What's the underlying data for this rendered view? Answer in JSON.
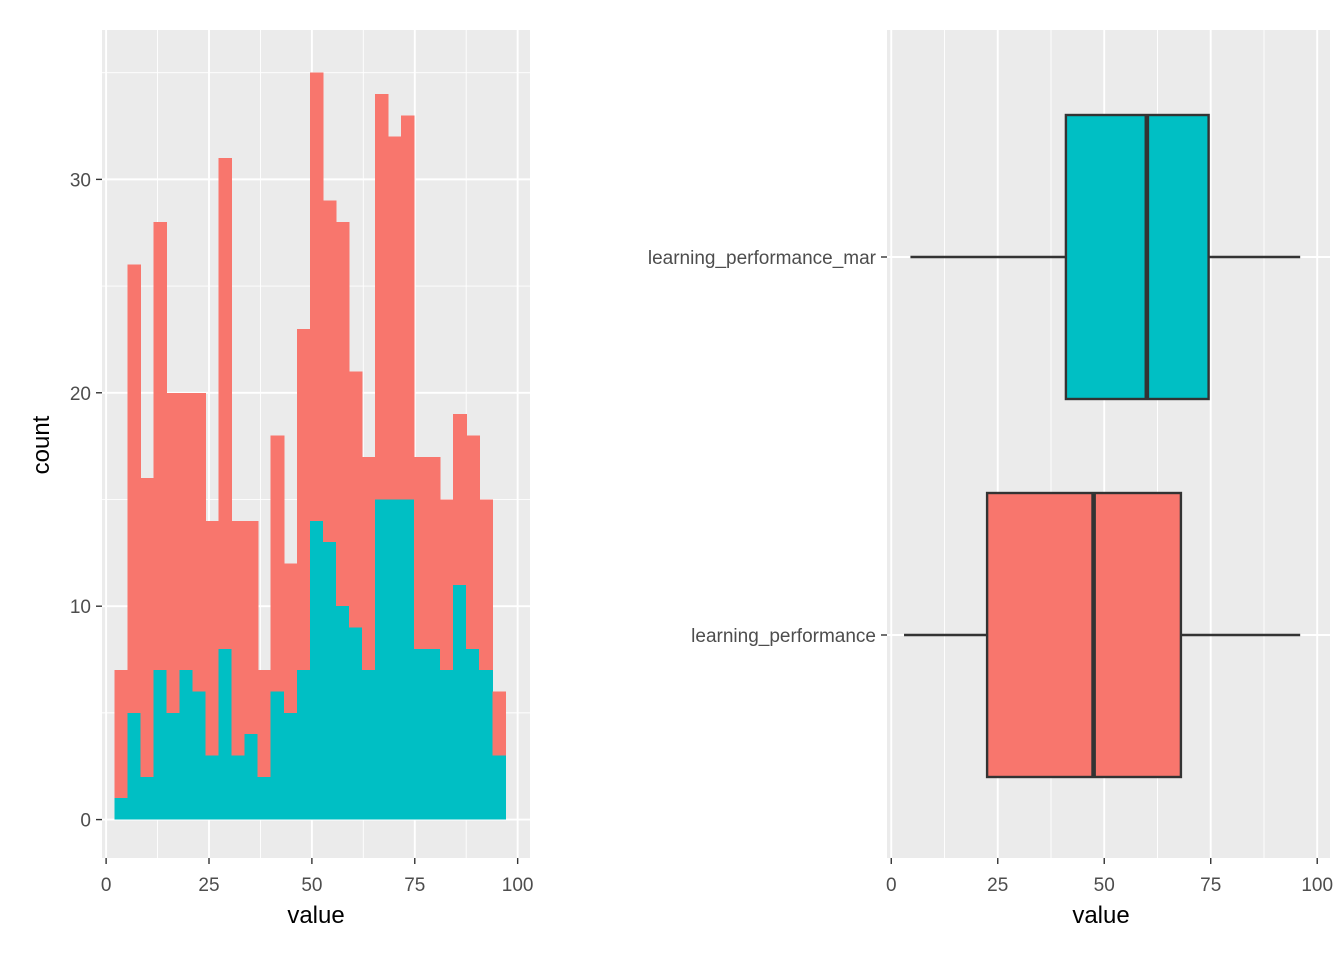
{
  "chart_data": [
    {
      "type": "bar",
      "subtype": "stacked-histogram",
      "xlabel": "value",
      "ylabel": "count",
      "xlim": [
        -1,
        103
      ],
      "ylim": [
        -1.8,
        37
      ],
      "x_ticks": [
        0,
        25,
        50,
        75,
        100
      ],
      "x_tick_labels": [
        "0",
        "25",
        "50",
        "75",
        "100"
      ],
      "y_ticks": [
        0,
        10,
        20,
        30
      ],
      "y_tick_labels": [
        "0",
        "10",
        "20",
        "30"
      ],
      "grid": true,
      "bin_width": 3.1667,
      "bin_centers": [
        3.58,
        6.75,
        9.92,
        13.08,
        16.25,
        19.42,
        22.58,
        25.75,
        28.92,
        32.08,
        35.25,
        38.42,
        41.58,
        44.75,
        47.92,
        51.08,
        54.25,
        57.42,
        60.58,
        63.75,
        66.92,
        70.08,
        73.25,
        76.42,
        79.58,
        82.75,
        85.92,
        89.08,
        92.25,
        95.42
      ],
      "series": [
        {
          "color": "#F8766D",
          "values": [
            6,
            21,
            14,
            21,
            15,
            13,
            14,
            11,
            23,
            11,
            10,
            5,
            12,
            7,
            16,
            21,
            16,
            18,
            12,
            10,
            19,
            17,
            18,
            9,
            9,
            8,
            8,
            10,
            8,
            3
          ]
        },
        {
          "color": "#00BFC4",
          "values": [
            1,
            5,
            2,
            7,
            5,
            7,
            6,
            3,
            8,
            3,
            4,
            2,
            6,
            5,
            7,
            14,
            13,
            10,
            9,
            7,
            15,
            15,
            15,
            8,
            8,
            7,
            11,
            8,
            7,
            3
          ]
        }
      ]
    },
    {
      "type": "boxplot",
      "orientation": "horizontal",
      "xlabel": "value",
      "ylabel": "",
      "xlim": [
        -1,
        103
      ],
      "x_ticks": [
        0,
        25,
        50,
        75,
        100
      ],
      "x_tick_labels": [
        "0",
        "25",
        "50",
        "75",
        "100"
      ],
      "categories": [
        "learning_performance",
        "learning_performance_mar"
      ],
      "boxes": [
        {
          "category": "learning_performance",
          "color": "#F8766D",
          "whisker_low": 3,
          "q1": 22.5,
          "median": 47.5,
          "q3": 68,
          "whisker_high": 96
        },
        {
          "category": "learning_performance_mar",
          "color": "#00BFC4",
          "whisker_low": 4.5,
          "q1": 41,
          "median": 60,
          "q3": 74.5,
          "whisker_high": 96
        }
      ],
      "grid": true
    }
  ]
}
